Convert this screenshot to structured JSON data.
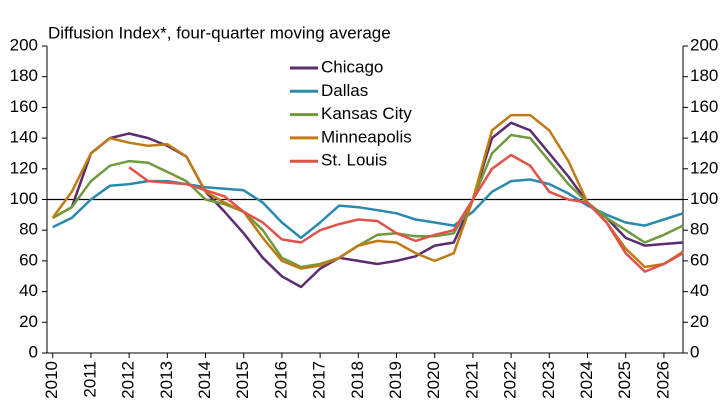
{
  "chart_data": {
    "type": "line",
    "title": "Diffusion Index*, four-quarter moving average",
    "x": [
      2010,
      2010.5,
      2011,
      2011.5,
      2012,
      2012.5,
      2013,
      2013.5,
      2014,
      2014.5,
      2015,
      2015.5,
      2016,
      2016.5,
      2017,
      2017.5,
      2018,
      2018.5,
      2019,
      2019.5,
      2020,
      2020.5,
      2021,
      2021.5,
      2022,
      2022.5,
      2023,
      2023.5,
      2024,
      2024.5,
      2025,
      2025.5,
      2026,
      2026.5
    ],
    "series": [
      {
        "name": "Chicago",
        "color": "#5b2c6f",
        "values": [
          88,
          95,
          130,
          140,
          143,
          140,
          135,
          128,
          105,
          92,
          78,
          62,
          50,
          43,
          55,
          62,
          60,
          58,
          60,
          63,
          70,
          72,
          100,
          140,
          150,
          145,
          130,
          115,
          98,
          88,
          75,
          70,
          71,
          72
        ]
      },
      {
        "name": "Dallas",
        "color": "#2a8aad",
        "values": [
          82,
          88,
          100,
          109,
          110,
          112,
          112,
          110,
          108,
          107,
          106,
          98,
          85,
          75,
          85,
          96,
          95,
          93,
          91,
          87,
          85,
          83,
          92,
          105,
          112,
          113,
          110,
          104,
          96,
          90,
          85,
          83,
          87,
          91
        ]
      },
      {
        "name": "Kansas City",
        "color": "#6f9a3e",
        "values": [
          88,
          95,
          112,
          122,
          125,
          124,
          118,
          112,
          100,
          97,
          92,
          80,
          62,
          56,
          58,
          62,
          70,
          77,
          78,
          76,
          76,
          78,
          100,
          130,
          142,
          140,
          125,
          110,
          98,
          88,
          80,
          72,
          77,
          83
        ]
      },
      {
        "name": "Minneapolis",
        "color": "#c07a14",
        "values": [
          88,
          105,
          130,
          140,
          137,
          135,
          136,
          128,
          105,
          98,
          92,
          75,
          60,
          55,
          57,
          62,
          70,
          73,
          72,
          65,
          60,
          65,
          100,
          145,
          155,
          155,
          145,
          125,
          98,
          85,
          68,
          56,
          58,
          66
        ]
      },
      {
        "name": "St. Louis",
        "color": "#e0524a",
        "values": [
          null,
          null,
          null,
          null,
          121,
          112,
          111,
          110,
          106,
          102,
          92,
          85,
          74,
          72,
          80,
          84,
          87,
          86,
          78,
          73,
          77,
          80,
          100,
          120,
          129,
          122,
          105,
          100,
          98,
          85,
          65,
          53,
          58,
          65
        ]
      }
    ],
    "xlim": [
      2009.85,
      2026.5
    ],
    "xticks": [
      2010,
      2011,
      2012,
      2013,
      2014,
      2015,
      2016,
      2017,
      2018,
      2019,
      2020,
      2021,
      2022,
      2023,
      2024,
      2025,
      2026
    ],
    "ylim": [
      0,
      200
    ],
    "yticks": [
      0,
      20,
      40,
      60,
      80,
      100,
      120,
      140,
      160,
      180,
      200
    ],
    "y2lim": [
      0,
      200
    ],
    "y2ticks": [
      0,
      20,
      40,
      60,
      80,
      100,
      120,
      140,
      160,
      180,
      200
    ],
    "reference_line": 100,
    "grid": false
  }
}
